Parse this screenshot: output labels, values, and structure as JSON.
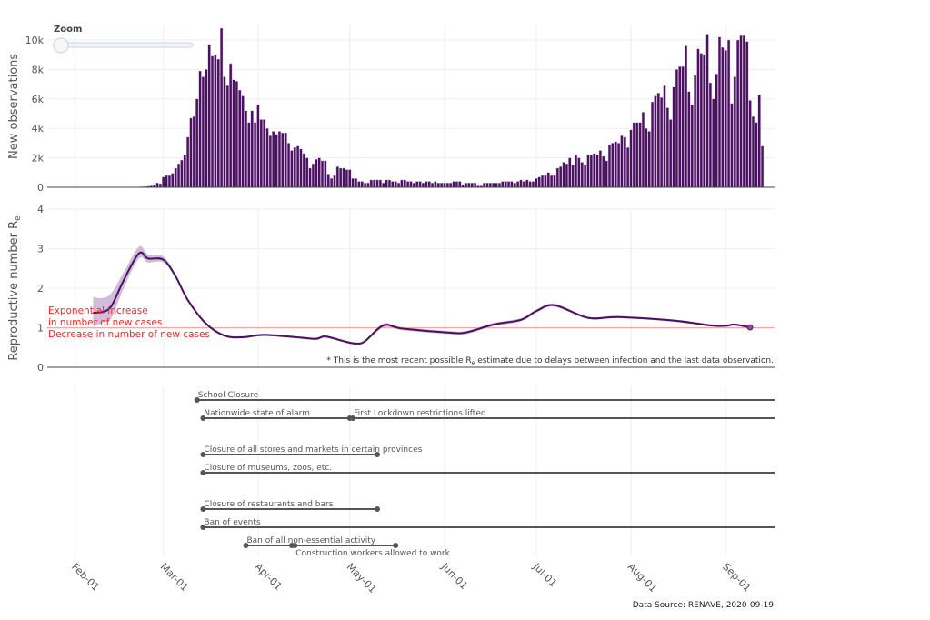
{
  "zoom_control": {
    "label": "Zoom",
    "value": 0
  },
  "footer": {
    "source": "Data Source: RENAVE, 2020-09-19"
  },
  "colors": {
    "bars": "#4a1160",
    "re_line": "#4a1160",
    "re_band": "#c9b1d4",
    "threshold": "#f6a8a8",
    "annotation": "#ff2222",
    "timeline": "#555555"
  },
  "chart_data": [
    {
      "type": "bar",
      "ylabel": "New observations",
      "ylim": [
        0,
        11000
      ],
      "yticks": [
        {
          "v": 0,
          "label": "0"
        },
        {
          "v": 2000,
          "label": "2k"
        },
        {
          "v": 4000,
          "label": "4k"
        },
        {
          "v": 6000,
          "label": "6k"
        },
        {
          "v": 8000,
          "label": "8k"
        },
        {
          "v": 10000,
          "label": "10k"
        }
      ],
      "grid": true,
      "observations": {
        "2020-01-25": 0,
        "2020-01-26": 0,
        "2020-01-27": 0,
        "2020-01-28": 0,
        "2020-01-29": 0,
        "2020-01-30": 0,
        "2020-01-31": 1,
        "2020-02-01": 0,
        "2020-02-02": 0,
        "2020-02-03": 1,
        "2020-02-04": 1,
        "2020-02-05": 0,
        "2020-02-06": 2,
        "2020-02-07": 1,
        "2020-02-08": 0,
        "2020-02-09": 1,
        "2020-02-10": 2,
        "2020-02-11": 1,
        "2020-02-12": 2,
        "2020-02-13": 0,
        "2020-02-14": 2,
        "2020-02-15": 1,
        "2020-02-16": 3,
        "2020-02-17": 2,
        "2020-02-18": 4,
        "2020-02-19": 5,
        "2020-02-20": 8,
        "2020-02-21": 20,
        "2020-02-22": 30,
        "2020-02-23": 50,
        "2020-02-24": 60,
        "2020-02-25": 80,
        "2020-02-26": 100,
        "2020-02-27": 150,
        "2020-02-28": 300,
        "2020-02-29": 250,
        "2020-03-01": 700,
        "2020-03-02": 800,
        "2020-03-03": 800,
        "2020-03-04": 950,
        "2020-03-05": 1300,
        "2020-03-06": 1600,
        "2020-03-07": 1850,
        "2020-03-08": 2200,
        "2020-03-09": 3400,
        "2020-03-10": 4700,
        "2020-03-11": 4800,
        "2020-03-12": 6000,
        "2020-03-13": 7900,
        "2020-03-14": 7500,
        "2020-03-15": 8000,
        "2020-03-16": 9700,
        "2020-03-17": 8900,
        "2020-03-18": 9000,
        "2020-03-19": 8700,
        "2020-03-20": 10800,
        "2020-03-21": 7500,
        "2020-03-22": 6900,
        "2020-03-23": 8400,
        "2020-03-24": 7300,
        "2020-03-25": 7200,
        "2020-03-26": 6600,
        "2020-03-27": 6200,
        "2020-03-28": 5200,
        "2020-03-29": 4400,
        "2020-03-30": 5200,
        "2020-03-31": 4400,
        "2020-04-01": 5600,
        "2020-04-02": 4600,
        "2020-04-03": 4600,
        "2020-04-04": 4000,
        "2020-04-05": 3500,
        "2020-04-06": 3800,
        "2020-04-07": 3600,
        "2020-04-08": 3800,
        "2020-04-09": 3700,
        "2020-04-10": 3700,
        "2020-04-11": 3000,
        "2020-04-12": 2500,
        "2020-04-13": 2700,
        "2020-04-14": 2800,
        "2020-04-15": 2600,
        "2020-04-16": 2300,
        "2020-04-17": 2000,
        "2020-04-18": 1300,
        "2020-04-19": 1600,
        "2020-04-20": 1900,
        "2020-04-21": 2000,
        "2020-04-22": 1800,
        "2020-04-23": 1800,
        "2020-04-24": 900,
        "2020-04-25": 600,
        "2020-04-26": 800,
        "2020-04-27": 1400,
        "2020-04-28": 1300,
        "2020-04-29": 1300,
        "2020-04-30": 1200,
        "2020-05-01": 1200,
        "2020-05-02": 600,
        "2020-05-03": 600,
        "2020-05-04": 400,
        "2020-05-05": 400,
        "2020-05-06": 300,
        "2020-05-07": 300,
        "2020-05-08": 500,
        "2020-05-09": 500,
        "2020-05-10": 500,
        "2020-05-11": 500,
        "2020-05-12": 300,
        "2020-05-13": 500,
        "2020-05-14": 500,
        "2020-05-15": 400,
        "2020-05-16": 400,
        "2020-05-17": 300,
        "2020-05-18": 500,
        "2020-05-19": 500,
        "2020-05-20": 400,
        "2020-05-21": 400,
        "2020-05-22": 300,
        "2020-05-23": 400,
        "2020-05-24": 400,
        "2020-05-25": 300,
        "2020-05-26": 400,
        "2020-05-27": 400,
        "2020-05-28": 300,
        "2020-05-29": 400,
        "2020-05-30": 300,
        "2020-05-31": 300,
        "2020-06-01": 300,
        "2020-06-02": 300,
        "2020-06-03": 300,
        "2020-06-04": 400,
        "2020-06-05": 400,
        "2020-06-06": 400,
        "2020-06-07": 200,
        "2020-06-08": 300,
        "2020-06-09": 300,
        "2020-06-10": 300,
        "2020-06-11": 300,
        "2020-06-12": 100,
        "2020-06-13": 100,
        "2020-06-14": 300,
        "2020-06-15": 300,
        "2020-06-16": 300,
        "2020-06-17": 300,
        "2020-06-18": 300,
        "2020-06-19": 300,
        "2020-06-20": 400,
        "2020-06-21": 400,
        "2020-06-22": 400,
        "2020-06-23": 400,
        "2020-06-24": 300,
        "2020-06-25": 400,
        "2020-06-26": 500,
        "2020-06-27": 400,
        "2020-06-28": 500,
        "2020-06-29": 400,
        "2020-06-30": 400,
        "2020-07-01": 600,
        "2020-07-02": 700,
        "2020-07-03": 800,
        "2020-07-04": 800,
        "2020-07-05": 1000,
        "2020-07-06": 800,
        "2020-07-07": 800,
        "2020-07-08": 1300,
        "2020-07-09": 1400,
        "2020-07-10": 1700,
        "2020-07-11": 1600,
        "2020-07-12": 2000,
        "2020-07-13": 1500,
        "2020-07-14": 2200,
        "2020-07-15": 2000,
        "2020-07-16": 1700,
        "2020-07-17": 1500,
        "2020-07-18": 2200,
        "2020-07-19": 2200,
        "2020-07-20": 2300,
        "2020-07-21": 2200,
        "2020-07-22": 2500,
        "2020-07-23": 2100,
        "2020-07-24": 1800,
        "2020-07-25": 2900,
        "2020-07-26": 3000,
        "2020-07-27": 3100,
        "2020-07-28": 3000,
        "2020-07-29": 3500,
        "2020-07-30": 3400,
        "2020-07-31": 2700,
        "2020-08-01": 3900,
        "2020-08-02": 4400,
        "2020-08-03": 4400,
        "2020-08-04": 4400,
        "2020-08-05": 5100,
        "2020-08-06": 4000,
        "2020-08-07": 3800,
        "2020-08-08": 5800,
        "2020-08-09": 6200,
        "2020-08-10": 6400,
        "2020-08-11": 6100,
        "2020-08-12": 6900,
        "2020-08-13": 5400,
        "2020-08-14": 4600,
        "2020-08-15": 6800,
        "2020-08-16": 8000,
        "2020-08-17": 8200,
        "2020-08-18": 8200,
        "2020-08-19": 9600,
        "2020-08-20": 6500,
        "2020-08-21": 5600,
        "2020-08-22": 7600,
        "2020-08-23": 9400,
        "2020-08-24": 9100,
        "2020-08-25": 9000,
        "2020-08-26": 10400,
        "2020-08-27": 7100,
        "2020-08-28": 6000,
        "2020-08-29": 7700,
        "2020-08-30": 10200,
        "2020-08-31": 9500,
        "2020-09-01": 9300,
        "2020-09-02": 10000,
        "2020-09-03": 5700,
        "2020-09-04": 7500,
        "2020-09-05": 10000,
        "2020-09-06": 10300,
        "2020-09-07": 10300,
        "2020-09-08": 9900,
        "2020-09-09": 5900,
        "2020-09-10": 4800,
        "2020-09-11": 4400,
        "2020-09-12": 6300,
        "2020-09-13": 2800
      }
    },
    {
      "type": "line",
      "ylabel": "Reproductive number R",
      "ylabel_sub": "e",
      "ylim": [
        0,
        4
      ],
      "yticks": [
        {
          "v": 0,
          "label": "0"
        },
        {
          "v": 1,
          "label": "1"
        },
        {
          "v": 2,
          "label": "2"
        },
        {
          "v": 3,
          "label": "3"
        },
        {
          "v": 4,
          "label": "4"
        }
      ],
      "grid": true,
      "threshold": 1,
      "annotation_above": [
        "Exponential increase",
        "in number of new cases"
      ],
      "annotation_below": "Decrease in number of new cases",
      "note": "* This is the most recent possible R",
      "note_sub": "e",
      "note_tail": " estimate due to delays between infection and the last data observation.",
      "points": [
        {
          "x": "2020-02-07",
          "y": 1.38,
          "lo": 1.05,
          "hi": 1.78
        },
        {
          "x": "2020-02-10",
          "y": 1.4,
          "lo": 1.12,
          "hi": 1.75
        },
        {
          "x": "2020-02-13",
          "y": 1.55,
          "lo": 1.25,
          "hi": 1.88
        },
        {
          "x": "2020-02-17",
          "y": 2.2,
          "lo": 2.0,
          "hi": 2.4
        },
        {
          "x": "2020-02-22",
          "y": 2.88,
          "lo": 2.75,
          "hi": 3.05
        },
        {
          "x": "2020-02-25",
          "y": 2.75,
          "lo": 2.65,
          "hi": 2.85
        },
        {
          "x": "2020-03-01",
          "y": 2.72,
          "lo": 2.65,
          "hi": 2.8
        },
        {
          "x": "2020-03-05",
          "y": 2.3,
          "lo": 2.25,
          "hi": 2.35
        },
        {
          "x": "2020-03-09",
          "y": 1.7,
          "lo": 1.66,
          "hi": 1.74
        },
        {
          "x": "2020-03-15",
          "y": 1.1,
          "lo": 1.07,
          "hi": 1.13
        },
        {
          "x": "2020-03-21",
          "y": 0.8,
          "lo": 0.77,
          "hi": 0.83
        },
        {
          "x": "2020-03-27",
          "y": 0.76,
          "lo": 0.73,
          "hi": 0.79
        },
        {
          "x": "2020-04-03",
          "y": 0.82,
          "lo": 0.79,
          "hi": 0.85
        },
        {
          "x": "2020-04-15",
          "y": 0.75,
          "lo": 0.72,
          "hi": 0.78
        },
        {
          "x": "2020-04-20",
          "y": 0.72,
          "lo": 0.69,
          "hi": 0.75
        },
        {
          "x": "2020-04-23",
          "y": 0.78,
          "lo": 0.75,
          "hi": 0.81
        },
        {
          "x": "2020-04-29",
          "y": 0.66,
          "lo": 0.63,
          "hi": 0.69
        },
        {
          "x": "2020-05-03",
          "y": 0.6,
          "lo": 0.57,
          "hi": 0.63
        },
        {
          "x": "2020-05-06",
          "y": 0.66,
          "lo": 0.63,
          "hi": 0.69
        },
        {
          "x": "2020-05-12",
          "y": 1.06,
          "lo": 1.01,
          "hi": 1.11
        },
        {
          "x": "2020-05-18",
          "y": 0.98,
          "lo": 0.94,
          "hi": 1.02
        },
        {
          "x": "2020-06-02",
          "y": 0.88,
          "lo": 0.84,
          "hi": 0.92
        },
        {
          "x": "2020-06-08",
          "y": 0.88,
          "lo": 0.84,
          "hi": 0.92
        },
        {
          "x": "2020-06-17",
          "y": 1.08,
          "lo": 1.04,
          "hi": 1.12
        },
        {
          "x": "2020-06-26",
          "y": 1.2,
          "lo": 1.16,
          "hi": 1.24
        },
        {
          "x": "2020-07-01",
          "y": 1.42,
          "lo": 1.38,
          "hi": 1.46
        },
        {
          "x": "2020-07-07",
          "y": 1.57,
          "lo": 1.53,
          "hi": 1.61
        },
        {
          "x": "2020-07-18",
          "y": 1.25,
          "lo": 1.22,
          "hi": 1.28
        },
        {
          "x": "2020-07-28",
          "y": 1.27,
          "lo": 1.24,
          "hi": 1.3
        },
        {
          "x": "2020-08-15",
          "y": 1.18,
          "lo": 1.15,
          "hi": 1.21
        },
        {
          "x": "2020-08-27",
          "y": 1.06,
          "lo": 1.03,
          "hi": 1.09
        },
        {
          "x": "2020-09-01",
          "y": 1.05,
          "lo": 1.02,
          "hi": 1.08
        },
        {
          "x": "2020-09-04",
          "y": 1.08,
          "lo": 1.05,
          "hi": 1.11
        },
        {
          "x": "2020-09-09",
          "y": 1.01,
          "lo": 0.98,
          "hi": 1.04
        }
      ]
    },
    {
      "type": "timeline",
      "events": [
        {
          "label": "School Closure",
          "start": "2020-03-12",
          "end": null,
          "row": 0
        },
        {
          "label": "Nationwide state of alarm",
          "start": "2020-03-14",
          "end": "2020-05-01",
          "row": 1
        },
        {
          "label": "First Lockdown restrictions lifted",
          "start": "2020-05-02",
          "end": null,
          "row": 1
        },
        {
          "label": "Closure of all stores and markets in certain provinces",
          "start": "2020-03-14",
          "end": "2020-05-10",
          "row": 3
        },
        {
          "label": "Closure of museums, zoos, etc.",
          "start": "2020-03-14",
          "end": null,
          "row": 4
        },
        {
          "label": "Closure of restaurants and bars",
          "start": "2020-03-14",
          "end": "2020-05-10",
          "row": 6
        },
        {
          "label": "Ban of events",
          "start": "2020-03-14",
          "end": null,
          "row": 7
        },
        {
          "label": "Ban of all non-essential activity",
          "start": "2020-03-28",
          "end": "2020-04-12",
          "row": 8
        },
        {
          "label": "Construction workers allowed to work",
          "start": "2020-04-13",
          "end": "2020-05-16",
          "row": 8
        }
      ]
    }
  ],
  "x_axis": {
    "xlim": [
      "2020-01-23",
      "2020-09-17"
    ],
    "ticks": [
      {
        "date": "2020-02-01",
        "label": "Feb-01"
      },
      {
        "date": "2020-03-01",
        "label": "Mar-01"
      },
      {
        "date": "2020-04-01",
        "label": "Apr-01"
      },
      {
        "date": "2020-05-01",
        "label": "May-01"
      },
      {
        "date": "2020-06-01",
        "label": "Jun-01"
      },
      {
        "date": "2020-07-01",
        "label": "Jul-01"
      },
      {
        "date": "2020-08-01",
        "label": "Aug-01"
      },
      {
        "date": "2020-09-01",
        "label": "Sep-01"
      }
    ]
  }
}
